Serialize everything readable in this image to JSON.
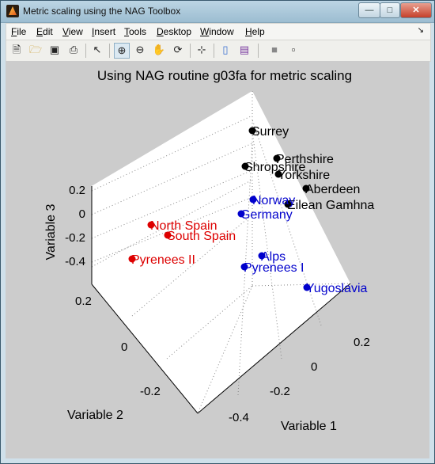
{
  "window": {
    "title": "Metric scaling using the NAG Toolbox"
  },
  "menu": {
    "items": [
      {
        "key": "F",
        "rest": "ile"
      },
      {
        "key": "E",
        "rest": "dit"
      },
      {
        "key": "V",
        "rest": "iew"
      },
      {
        "key": "I",
        "rest": "nsert"
      },
      {
        "key": "T",
        "rest": "ools"
      },
      {
        "key": "D",
        "rest": "esktop"
      },
      {
        "key": "W",
        "rest": "indow"
      },
      {
        "key": "H",
        "rest": "elp"
      }
    ]
  },
  "toolbar": {
    "icons": [
      "new-figure-icon",
      "open-file-icon",
      "save-icon",
      "print-icon",
      "select-arrow-icon",
      "zoom-in-icon",
      "zoom-out-icon",
      "pan-hand-icon",
      "rotate-3d-icon",
      "data-cursor-icon",
      "colorbar-icon",
      "legend-icon",
      "hide-plot-tools-icon",
      "show-plot-tools-icon"
    ]
  },
  "chart_data": {
    "type": "scatter",
    "title": "Using NAG routine g03fa for metric scaling",
    "xlabel": "Variable 1",
    "ylabel": "Variable 2",
    "zlabel": "Variable 3",
    "x_ticks": [
      "-0.4",
      "-0.2",
      "0",
      "0.2"
    ],
    "y_ticks": [
      "-0.2",
      "0",
      "0.2"
    ],
    "z_ticks": [
      "-0.4",
      "-0.2",
      "0",
      "0.2"
    ],
    "grid": true,
    "colors": {
      "black": "#000000",
      "blue": "#0000cc",
      "red": "#dd0000"
    },
    "points": [
      {
        "label": "Surrey",
        "color": "black"
      },
      {
        "label": "Perthshire",
        "color": "black"
      },
      {
        "label": "Shropshire",
        "color": "black"
      },
      {
        "label": "Yorkshire",
        "color": "black"
      },
      {
        "label": "Aberdeen",
        "color": "black"
      },
      {
        "label": "Eilean Gamhna",
        "color": "black"
      },
      {
        "label": "Norway",
        "color": "blue"
      },
      {
        "label": "Germany",
        "color": "blue"
      },
      {
        "label": "Alps",
        "color": "blue"
      },
      {
        "label": "Pyrenees I",
        "color": "blue"
      },
      {
        "label": "Yugoslavia",
        "color": "blue"
      },
      {
        "label": "North Spain",
        "color": "red"
      },
      {
        "label": "South Spain",
        "color": "red"
      },
      {
        "label": "Pyrenees II",
        "color": "red"
      }
    ]
  }
}
